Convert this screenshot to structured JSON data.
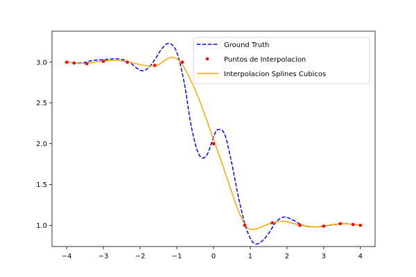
{
  "chart_data": {
    "type": "line",
    "title": "",
    "xlabel": "",
    "ylabel": "",
    "xlim": [
      -4.4,
      4.4
    ],
    "ylim": [
      0.74,
      3.38
    ],
    "grid": false,
    "legend_position": "top-right",
    "x_ticks": [
      -4,
      -3,
      -2,
      -1,
      0,
      1,
      2,
      3,
      4
    ],
    "x_tick_labels": [
      "−4",
      "−3",
      "−2",
      "−1",
      "0",
      "1",
      "2",
      "3",
      "4"
    ],
    "y_ticks": [
      1.0,
      1.5,
      2.0,
      2.5,
      3.0
    ],
    "y_tick_labels": [
      "1.0",
      "1.5",
      "2.0",
      "2.5",
      "3.0"
    ],
    "series": [
      {
        "name": "Ground Truth",
        "kind": "dashed-line",
        "color": "#0000ff",
        "points": [
          [
            -4.0,
            3.0
          ],
          [
            -3.6,
            2.99
          ],
          [
            -3.3,
            3.02
          ],
          [
            -3.0,
            3.03
          ],
          [
            -2.6,
            3.04
          ],
          [
            -2.3,
            3.0
          ],
          [
            -2.0,
            2.9
          ],
          [
            -1.8,
            2.92
          ],
          [
            -1.6,
            3.03
          ],
          [
            -1.4,
            3.17
          ],
          [
            -1.2,
            3.23
          ],
          [
            -1.0,
            3.12
          ],
          [
            -0.8,
            2.75
          ],
          [
            -0.6,
            2.2
          ],
          [
            -0.4,
            1.87
          ],
          [
            -0.2,
            1.85
          ],
          [
            0.0,
            2.08
          ],
          [
            0.1,
            2.17
          ],
          [
            0.3,
            2.12
          ],
          [
            0.5,
            1.75
          ],
          [
            0.7,
            1.3
          ],
          [
            0.9,
            0.95
          ],
          [
            1.1,
            0.78
          ],
          [
            1.3,
            0.8
          ],
          [
            1.5,
            0.9
          ],
          [
            1.7,
            1.04
          ],
          [
            1.9,
            1.1
          ],
          [
            2.1,
            1.08
          ],
          [
            2.3,
            1.03
          ],
          [
            2.5,
            0.99
          ],
          [
            2.8,
            0.98
          ],
          [
            3.0,
            0.99
          ],
          [
            3.3,
            1.01
          ],
          [
            3.6,
            1.02
          ],
          [
            4.0,
            1.0
          ]
        ]
      },
      {
        "name": "Puntos de Interpolacion",
        "kind": "scatter",
        "color": "#ff0000",
        "points": [
          [
            -4.0,
            3.0
          ],
          [
            -3.8,
            2.99
          ],
          [
            -3.45,
            2.98
          ],
          [
            -3.0,
            3.01
          ],
          [
            -2.35,
            3.0
          ],
          [
            -1.6,
            2.96
          ],
          [
            -0.85,
            3.0
          ],
          [
            0.0,
            2.0
          ],
          [
            0.85,
            1.0
          ],
          [
            1.6,
            1.03
          ],
          [
            2.35,
            1.0
          ],
          [
            3.0,
            0.99
          ],
          [
            3.45,
            1.02
          ],
          [
            3.8,
            1.01
          ],
          [
            4.0,
            1.0
          ]
        ]
      },
      {
        "name": "Interpolacion Splines Cubicos",
        "kind": "solid-line",
        "color": "#ffa500",
        "points": [
          [
            -4.0,
            3.0
          ],
          [
            -3.7,
            2.985
          ],
          [
            -3.4,
            2.99
          ],
          [
            -3.0,
            3.015
          ],
          [
            -2.6,
            3.02
          ],
          [
            -2.2,
            2.99
          ],
          [
            -1.8,
            2.955
          ],
          [
            -1.5,
            2.97
          ],
          [
            -1.3,
            3.03
          ],
          [
            -1.1,
            3.06
          ],
          [
            -0.9,
            3.0
          ],
          [
            -0.7,
            2.85
          ],
          [
            -0.4,
            2.55
          ],
          [
            -0.1,
            2.18
          ],
          [
            0.2,
            1.8
          ],
          [
            0.5,
            1.4
          ],
          [
            0.7,
            1.15
          ],
          [
            0.9,
            0.98
          ],
          [
            1.1,
            0.95
          ],
          [
            1.3,
            0.98
          ],
          [
            1.6,
            1.03
          ],
          [
            1.9,
            1.05
          ],
          [
            2.2,
            1.02
          ],
          [
            2.5,
            0.99
          ],
          [
            2.8,
            0.98
          ],
          [
            3.1,
            1.0
          ],
          [
            3.5,
            1.02
          ],
          [
            3.8,
            1.01
          ],
          [
            4.0,
            1.0
          ]
        ]
      }
    ]
  }
}
